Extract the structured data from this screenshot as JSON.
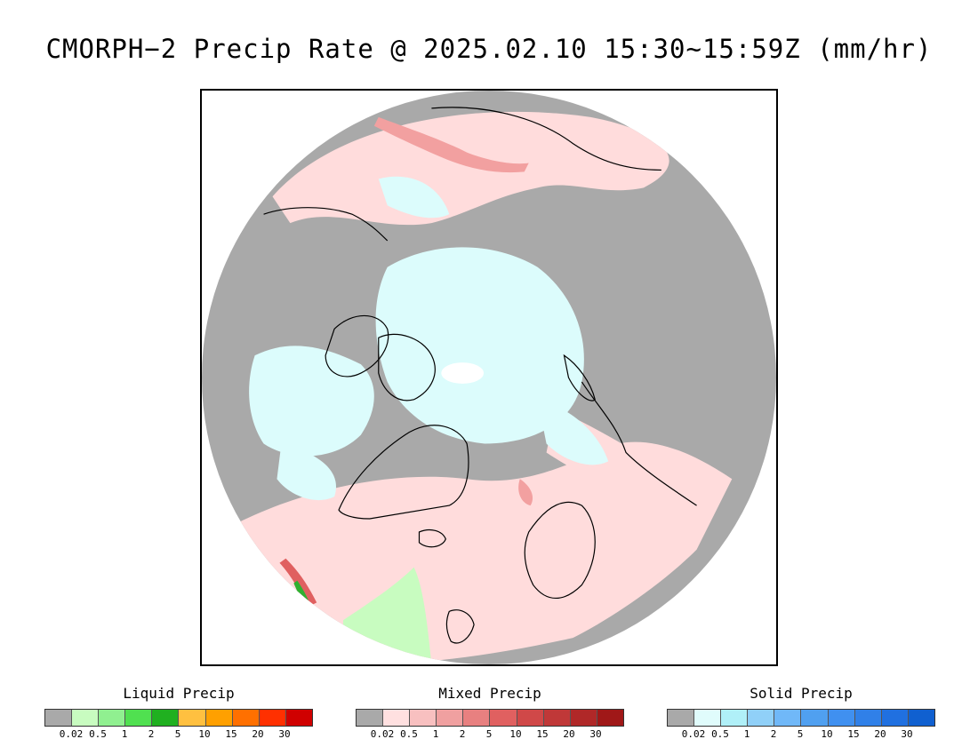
{
  "title": "CMORPH−2 Precip Rate @ 2025.02.10 15:30~15:59Z (mm/hr)",
  "map": {
    "projection": "north-polar-stereographic",
    "colors": {
      "ocean_nodata": "#a9a9a9",
      "land_nodata": "#a9a9a9",
      "mixed_light": "#ffdcdc",
      "mixed_medium": "#f2a0a0",
      "mixed_strong": "#e06060",
      "solid_light": "#dcfcfc",
      "solid_medium": "#b5f0f8",
      "liquid_light": "#c8fcc0",
      "liquid_medium": "#7ce07c",
      "liquid_strong": "#30b030",
      "coastline": "#000000",
      "outside": "#ffffff"
    }
  },
  "legends": [
    {
      "title": "Liquid Precip",
      "colors": [
        "#a9a9a9",
        "#c8fcc0",
        "#90f090",
        "#50e050",
        "#20b020",
        "#ffc040",
        "#ffa000",
        "#ff7000",
        "#ff3000",
        "#d00000"
      ],
      "ticks": [
        "0.02",
        "0.5",
        "1",
        "2",
        "5",
        "10",
        "15",
        "20",
        "30"
      ]
    },
    {
      "title": "Mixed Precip",
      "colors": [
        "#a9a9a9",
        "#ffe0e0",
        "#f8c0c0",
        "#f0a0a0",
        "#e88080",
        "#e06060",
        "#d04848",
        "#c03838",
        "#b02828",
        "#a01818"
      ],
      "ticks": [
        "0.02",
        "0.5",
        "1",
        "2",
        "5",
        "10",
        "15",
        "20",
        "30"
      ]
    },
    {
      "title": "Solid Precip",
      "colors": [
        "#a9a9a9",
        "#e0fcfc",
        "#b0f0f8",
        "#90d0f8",
        "#70b8f8",
        "#50a0f0",
        "#4090f0",
        "#3080e8",
        "#2070e0",
        "#1060d0"
      ],
      "ticks": [
        "0.02",
        "0.5",
        "1",
        "2",
        "5",
        "10",
        "15",
        "20",
        "30"
      ]
    }
  ]
}
